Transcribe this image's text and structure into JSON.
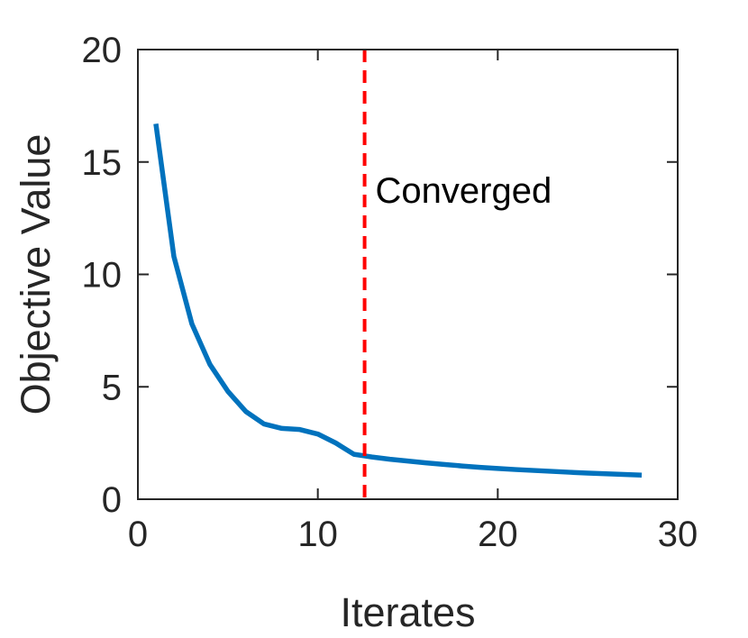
{
  "chart_data": {
    "type": "line",
    "xlabel": "Iterates",
    "ylabel": "Objective Value",
    "xlim": [
      0,
      30
    ],
    "ylim": [
      0,
      20
    ],
    "xticks": [
      0,
      10,
      20,
      30
    ],
    "yticks": [
      0,
      5,
      10,
      15,
      20
    ],
    "grid": false,
    "series": [
      {
        "color": "#0072bd",
        "x": [
          1,
          2,
          3,
          4,
          5,
          6,
          7,
          8,
          9,
          10,
          11,
          12,
          13,
          14,
          15,
          16,
          17,
          18,
          19,
          20,
          21,
          22,
          23,
          24,
          25,
          26,
          27,
          28
        ],
        "y": [
          16.7,
          10.8,
          7.8,
          6.0,
          4.8,
          3.9,
          3.35,
          3.15,
          3.1,
          2.9,
          2.5,
          2.0,
          1.88,
          1.78,
          1.7,
          1.62,
          1.55,
          1.48,
          1.42,
          1.37,
          1.32,
          1.28,
          1.24,
          1.2,
          1.16,
          1.13,
          1.1,
          1.07
        ]
      }
    ],
    "vline": {
      "x": 12.6,
      "color": "#ff0000",
      "style": "dashed"
    },
    "annotations": [
      {
        "text": "Converged",
        "x": 13.2,
        "y": 13.6
      }
    ]
  }
}
